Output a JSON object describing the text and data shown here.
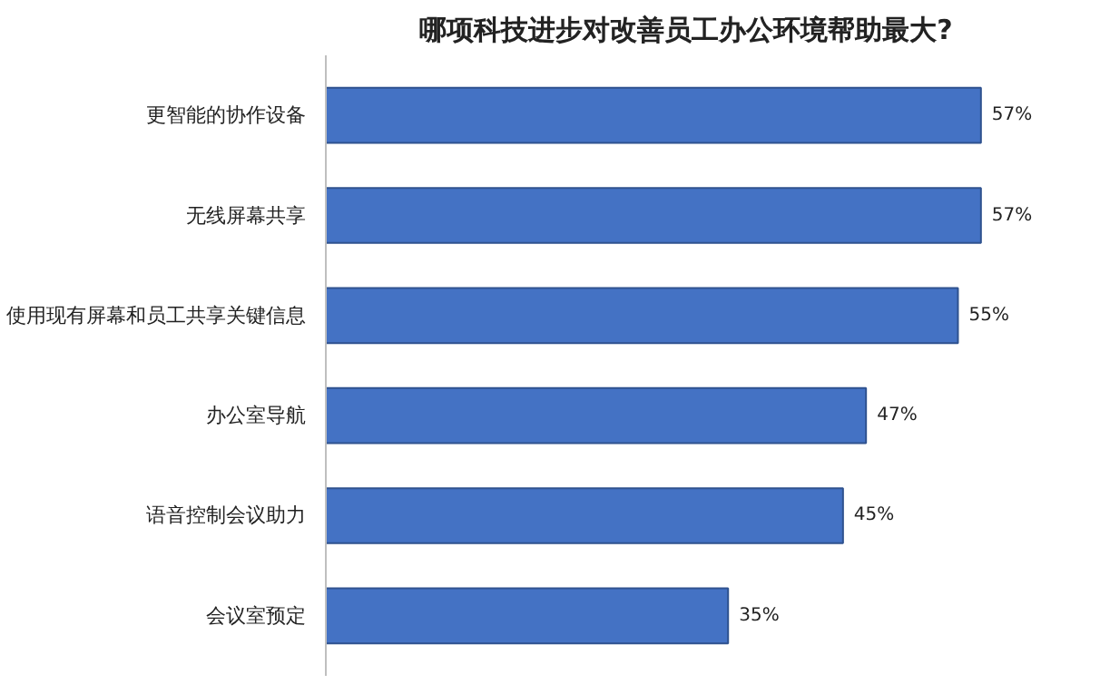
{
  "chart_data": {
    "type": "bar",
    "orientation": "horizontal",
    "title": "哪项科技进步对改善员工办公环境帮助最大?",
    "categories": [
      "更智能的协作设备",
      "无线屏幕共享",
      "使用现有屏幕和员工共享关键信息",
      "办公室导航",
      "语音控制会议助力",
      "会议室预定"
    ],
    "values": [
      57,
      57,
      55,
      47,
      45,
      35
    ],
    "value_labels": [
      "57%",
      "57%",
      "55%",
      "47%",
      "45%",
      "35%"
    ],
    "color": "#4472c4",
    "grid": false,
    "tick_labels": "y"
  }
}
